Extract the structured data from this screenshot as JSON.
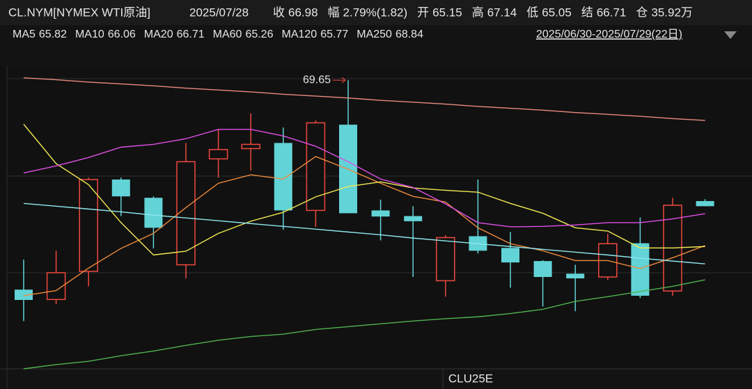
{
  "header": {
    "symbol": "CL.NYM[NYMEX WTI原油]",
    "date": "2025/07/28",
    "items": [
      {
        "label": "收",
        "value": "66.98",
        "color": "#f0493e"
      },
      {
        "label": "幅",
        "value": "2.79%(1.82)",
        "color": "#f0493e"
      },
      {
        "label": "开",
        "value": "65.15",
        "color": "#f0493e"
      },
      {
        "label": "高",
        "value": "67.14",
        "color": "#f0493e"
      },
      {
        "label": "低",
        "value": "65.05",
        "color": "#3fbf5a"
      },
      {
        "label": "结",
        "value": "66.71",
        "color": "#f0493e"
      },
      {
        "label": "仓",
        "value": "35.92万",
        "color": "#e6e6e6"
      }
    ],
    "range": "2025/06/30-2025/07/29(22日)"
  },
  "chart_data": {
    "type": "candlestick",
    "categories": [
      null,
      null,
      null,
      null,
      null,
      null,
      null,
      null,
      null,
      null,
      null,
      null,
      null,
      null,
      null,
      null,
      null,
      null,
      null,
      null,
      null,
      null
    ],
    "open": [
      65.18,
      64.97,
      65.57,
      67.53,
      67.14,
      65.71,
      67.97,
      68.19,
      68.31,
      66.87,
      68.7,
      66.87,
      66.75,
      65.37,
      66.32,
      66.07,
      65.79,
      65.52,
      65.45,
      66.17,
      65.15,
      67.07
    ],
    "high": [
      65.82,
      66.01,
      67.57,
      67.57,
      67.17,
      68.31,
      68.61,
      68.94,
      68.64,
      68.79,
      69.65,
      67.1,
      66.96,
      66.34,
      67.53,
      66.41,
      65.81,
      65.71,
      66.37,
      66.72,
      67.14,
      67.11
    ],
    "low": [
      64.51,
      64.87,
      65.25,
      66.75,
      66.06,
      65.42,
      67.57,
      67.72,
      66.46,
      66.52,
      66.81,
      66.23,
      65.45,
      65.03,
      65.95,
      65.22,
      64.82,
      64.72,
      65.39,
      65.0,
      65.05,
      66.96
    ],
    "close": [
      64.96,
      65.54,
      67.53,
      67.17,
      66.5,
      67.91,
      68.17,
      68.28,
      66.87,
      68.74,
      66.81,
      66.74,
      66.64,
      66.29,
      66.01,
      65.76,
      65.45,
      65.42,
      66.16,
      65.05,
      66.98,
      66.96
    ],
    "up_color": "#f0493e",
    "down_color": "#62d3d6",
    "ylim": [
      63.49,
      69.95
    ],
    "annotation": "69.65",
    "x_label": "CLU25E",
    "series": [
      {
        "name": "MA5",
        "legend_value": 65.82,
        "color": "#ee8a3c",
        "values": [
          65.05,
          65.16,
          65.64,
          66.06,
          66.38,
          66.93,
          67.45,
          67.63,
          67.54,
          68.02,
          67.75,
          67.45,
          67.17,
          67.05,
          66.5,
          66.16,
          66.01,
          65.8,
          65.8,
          65.63,
          65.86,
          66.12
        ]
      },
      {
        "name": "MA10",
        "legend_value": 66.06,
        "color": "#f2ea52",
        "values": [
          68.71,
          67.87,
          67.42,
          66.61,
          65.92,
          66.0,
          66.38,
          66.64,
          66.83,
          67.16,
          67.38,
          67.48,
          67.35,
          67.3,
          67.26,
          67.02,
          66.81,
          66.5,
          66.43,
          66.07,
          66.07,
          66.1
        ]
      },
      {
        "name": "MA20",
        "legend_value": 66.71,
        "color": "#df4fe6",
        "values": [
          67.67,
          67.82,
          68.0,
          68.22,
          68.28,
          68.4,
          68.6,
          68.6,
          68.46,
          68.24,
          67.91,
          67.54,
          67.36,
          67.01,
          66.61,
          66.52,
          66.53,
          66.56,
          66.61,
          66.61,
          66.69,
          66.8
        ]
      },
      {
        "name": "MA60",
        "legend_value": 65.26,
        "color": "#4fb34f",
        "values": [
          63.49,
          63.58,
          63.65,
          63.77,
          63.87,
          63.99,
          64.1,
          64.18,
          64.23,
          64.33,
          64.39,
          64.45,
          64.51,
          64.56,
          64.6,
          64.67,
          64.76,
          64.93,
          65.03,
          65.14,
          65.25,
          65.39
        ]
      },
      {
        "name": "MA120",
        "legend_value": 65.77,
        "color": "#8ee8ee",
        "values": [
          67.02,
          66.96,
          66.9,
          66.84,
          66.77,
          66.71,
          66.65,
          66.59,
          66.53,
          66.47,
          66.41,
          66.35,
          66.28,
          66.22,
          66.16,
          66.1,
          66.04,
          65.98,
          65.92,
          65.85,
          65.79,
          65.73
        ]
      },
      {
        "name": "MA250",
        "legend_value": 68.84,
        "color": "#e98a80",
        "values": [
          69.7,
          69.66,
          69.61,
          69.57,
          69.53,
          69.48,
          69.44,
          69.4,
          69.35,
          69.31,
          69.27,
          69.22,
          69.18,
          69.14,
          69.09,
          69.05,
          69.01,
          68.96,
          68.92,
          68.88,
          68.83,
          68.79
        ]
      }
    ]
  }
}
